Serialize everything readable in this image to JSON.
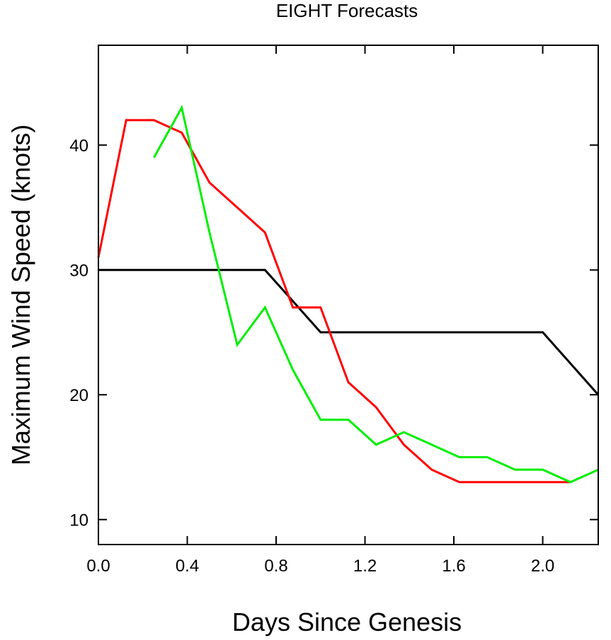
{
  "chart_data": {
    "type": "line",
    "title": "EIGHT Forecasts",
    "xlabel": "Days Since Genesis",
    "ylabel": "Maximum Wind Speed (knots)",
    "xlim": [
      0.0,
      2.25
    ],
    "ylim": [
      8.0,
      48.0
    ],
    "x_ticks": [
      "0.0",
      "0.4",
      "0.8",
      "1.2",
      "1.6",
      "2.0"
    ],
    "y_ticks": [
      "10",
      "20",
      "30",
      "40"
    ],
    "grid": false,
    "legend": "none",
    "series": [
      {
        "color": "#000000",
        "x": [
          0.0,
          0.125,
          0.25,
          0.375,
          0.5,
          0.625,
          0.75,
          0.875,
          1.0,
          1.125,
          1.25,
          1.375,
          1.5,
          1.625,
          1.75,
          1.875,
          2.0,
          2.25
        ],
        "y": [
          30,
          30,
          30,
          30,
          30,
          30,
          30,
          27.5,
          25,
          25,
          25,
          25,
          25,
          25,
          25,
          25,
          25,
          20
        ]
      },
      {
        "color": "#ff0000",
        "x": [
          0.0,
          0.125,
          0.25,
          0.375,
          0.5,
          0.625,
          0.75,
          0.875,
          1.0,
          1.125,
          1.25,
          1.375,
          1.5,
          1.625,
          1.75,
          1.875,
          2.0,
          2.125
        ],
        "y": [
          31,
          42,
          42,
          41,
          37,
          35,
          33,
          27,
          27,
          21,
          19,
          16,
          14,
          13,
          13,
          13,
          13,
          13
        ]
      },
      {
        "color": "#00ee00",
        "x": [
          0.25,
          0.375,
          0.5,
          0.625,
          0.75,
          0.875,
          1.0,
          1.125,
          1.25,
          1.375,
          1.5,
          1.625,
          1.75,
          1.875,
          2.0,
          2.125,
          2.25
        ],
        "y": [
          39,
          43,
          33,
          24,
          27,
          22,
          18,
          18,
          16,
          17,
          16,
          15,
          15,
          14,
          14,
          13,
          14
        ]
      }
    ]
  }
}
